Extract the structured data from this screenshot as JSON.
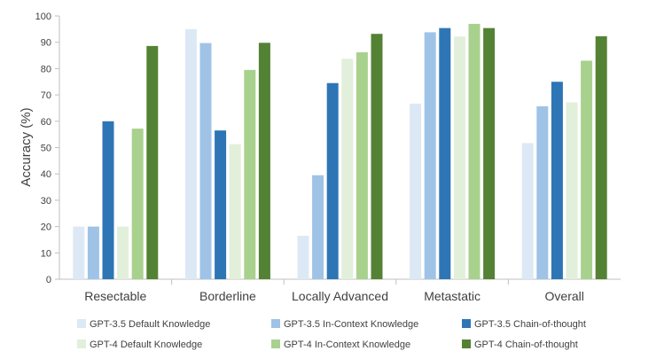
{
  "chart_data": {
    "type": "bar",
    "title": "",
    "xlabel": "",
    "ylabel": "Accuracy (%)",
    "ylim": [
      0,
      100
    ],
    "yticks": [
      0,
      10,
      20,
      30,
      40,
      50,
      60,
      70,
      80,
      90,
      100
    ],
    "grid": false,
    "legend_position": "bottom",
    "categories": [
      "Resectable",
      "Borderline",
      "Locally Advanced",
      "Metastatic",
      "Overall"
    ],
    "series": [
      {
        "name": "GPT-3.5 Default Knowledge",
        "color": "#dce9f5",
        "values": [
          20,
          95,
          16.5,
          66.7,
          51.7
        ]
      },
      {
        "name": "GPT-3.5 In-Context Knowledge",
        "color": "#9fc3e6",
        "values": [
          20,
          89.7,
          39.5,
          93.8,
          65.7
        ]
      },
      {
        "name": "GPT-3.5 Chain-of-thought",
        "color": "#2e75b6",
        "values": [
          60,
          56.5,
          74.5,
          95.4,
          75
        ]
      },
      {
        "name": "GPT-4 Default Knowledge",
        "color": "#e2efda",
        "values": [
          20,
          51.3,
          83.7,
          92.2,
          67.2
        ]
      },
      {
        "name": "GPT-4 In-Context Knowledge",
        "color": "#a9d18e",
        "values": [
          57.2,
          79.5,
          86.2,
          97,
          83
        ]
      },
      {
        "name": "GPT-4 Chain-of-thought",
        "color": "#548235",
        "values": [
          88.6,
          89.8,
          93.2,
          95.4,
          92.3
        ]
      }
    ]
  }
}
